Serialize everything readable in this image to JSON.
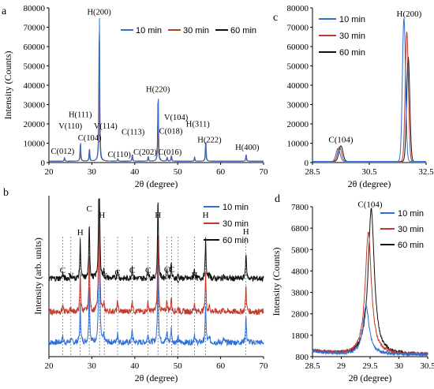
{
  "chart_data": [
    {
      "panel": "a",
      "type": "line",
      "xlabel": "2θ (degree)",
      "ylabel": "Intensity (Counts)",
      "xlim": [
        20,
        70
      ],
      "ylim": [
        0,
        80000
      ],
      "xticks": [
        20,
        30,
        40,
        50,
        60,
        70
      ],
      "yticks": [
        0,
        10000,
        20000,
        30000,
        40000,
        50000,
        60000,
        70000,
        80000
      ],
      "legend_position": "top-right",
      "series": [
        {
          "name": "10 min",
          "color": "#2f6fd6"
        },
        {
          "name": "30 min",
          "color": "#c0392b"
        },
        {
          "name": "60 min",
          "color": "#111111"
        }
      ],
      "peaks": [
        {
          "x": 23.6,
          "y": 1800
        },
        {
          "x": 27.3,
          "y": 9500
        },
        {
          "x": 29.4,
          "y": 6500
        },
        {
          "x": 31.7,
          "y": 74000
        },
        {
          "x": 36.0,
          "y": 1200
        },
        {
          "x": 39.4,
          "y": 3500
        },
        {
          "x": 43.1,
          "y": 2500
        },
        {
          "x": 45.4,
          "y": 34000
        },
        {
          "x": 47.5,
          "y": 2000
        },
        {
          "x": 48.5,
          "y": 3000
        },
        {
          "x": 53.9,
          "y": 2000
        },
        {
          "x": 56.5,
          "y": 10500
        },
        {
          "x": 65.9,
          "y": 3500
        },
        {
          "x": 75.3,
          "y": 800
        }
      ],
      "annotations": [
        {
          "text": "H(200)",
          "x": 31.7,
          "y": 76500
        },
        {
          "text": "H(111)",
          "x": 27.3,
          "y": 23500
        },
        {
          "text": "V(110)",
          "x": 25.0,
          "y": 17500
        },
        {
          "text": "C(104)",
          "x": 29.5,
          "y": 11500
        },
        {
          "text": "C(012)",
          "x": 23.2,
          "y": 4500
        },
        {
          "text": "V(114)",
          "x": 33.2,
          "y": 17500
        },
        {
          "text": "C(110)",
          "x": 36.4,
          "y": 2800
        },
        {
          "text": "C(113)",
          "x": 39.6,
          "y": 14500
        },
        {
          "text": "C(202)",
          "x": 42.4,
          "y": 4000
        },
        {
          "text": "H(220)",
          "x": 45.4,
          "y": 36500
        },
        {
          "text": "V(104)",
          "x": 49.6,
          "y": 22000
        },
        {
          "text": "C(018)",
          "x": 48.4,
          "y": 15000
        },
        {
          "text": "C(016)",
          "x": 48.2,
          "y": 4000
        },
        {
          "text": "H(311)",
          "x": 54.7,
          "y": 18500
        },
        {
          "text": "H(222)",
          "x": 57.4,
          "y": 10500
        },
        {
          "text": "H(400)",
          "x": 66.2,
          "y": 6500
        }
      ]
    },
    {
      "panel": "b",
      "type": "line",
      "xlabel": "2θ (degree)",
      "ylabel": "Intensity (arb. units)",
      "xlim": [
        20,
        70
      ],
      "xticks": [
        20,
        30,
        40,
        50,
        60,
        70
      ],
      "legend_position": "top-right",
      "series": [
        {
          "name": "10 min",
          "color": "#2f6fd6"
        },
        {
          "name": "30 min",
          "color": "#c0392b"
        },
        {
          "name": "60 min",
          "color": "#111111"
        }
      ],
      "peaks": [
        {
          "x": 23.2,
          "y": 0.5
        },
        {
          "x": 25.1,
          "y": 0.35
        },
        {
          "x": 27.3,
          "y": 3.2
        },
        {
          "x": 29.4,
          "y": 4.8
        },
        {
          "x": 31.7,
          "y": 14
        },
        {
          "x": 32.8,
          "y": 0.6
        },
        {
          "x": 36.0,
          "y": 0.9
        },
        {
          "x": 39.4,
          "y": 1.1
        },
        {
          "x": 43.1,
          "y": 0.9
        },
        {
          "x": 45.4,
          "y": 7
        },
        {
          "x": 47.5,
          "y": 1.0
        },
        {
          "x": 48.5,
          "y": 1.2
        },
        {
          "x": 50.1,
          "y": 0.4
        },
        {
          "x": 53.9,
          "y": 0.8
        },
        {
          "x": 56.5,
          "y": 3.2
        },
        {
          "x": 57.4,
          "y": 0.5
        },
        {
          "x": 60.7,
          "y": 0.3
        },
        {
          "x": 65.9,
          "y": 2.2
        }
      ],
      "markers": [
        {
          "text": "C",
          "x": 23.2
        },
        {
          "text": "V",
          "x": 25.1
        },
        {
          "text": "H",
          "x": 27.3
        },
        {
          "text": "C",
          "x": 29.4
        },
        {
          "text": "H",
          "x": 31.8
        },
        {
          "text": "V",
          "x": 32.9
        },
        {
          "text": "C",
          "x": 36.0
        },
        {
          "text": "C",
          "x": 39.4
        },
        {
          "text": "C",
          "x": 43.1
        },
        {
          "text": "H",
          "x": 45.4
        },
        {
          "text": "C",
          "x": 47.5
        },
        {
          "text": "C",
          "x": 48.6
        },
        {
          "text": "V",
          "x": 50.1
        },
        {
          "text": "H",
          "x": 53.9
        },
        {
          "text": "H",
          "x": 56.5
        },
        {
          "text": "H",
          "x": 65.9
        }
      ]
    },
    {
      "panel": "c",
      "type": "line",
      "xlabel": "2θ (degree)",
      "ylabel": "",
      "xlim": [
        28.5,
        32.5
      ],
      "ylim": [
        0,
        80000
      ],
      "xticks": [
        28.5,
        30.5,
        32.5
      ],
      "yticks": [
        0,
        10000,
        20000,
        30000,
        40000,
        50000,
        60000,
        70000,
        80000
      ],
      "legend_position": "top-left",
      "series": [
        {
          "name": "10 min",
          "color": "#2f6fd6",
          "peaks": [
            {
              "x": 29.4,
              "y": 6700
            },
            {
              "x": 31.72,
              "y": 74000
            }
          ]
        },
        {
          "name": "30 min",
          "color": "#c0392b",
          "peaks": [
            {
              "x": 29.45,
              "y": 7500
            },
            {
              "x": 31.82,
              "y": 67000
            }
          ]
        },
        {
          "name": "60 min",
          "color": "#111111",
          "peaks": [
            {
              "x": 29.5,
              "y": 8000
            },
            {
              "x": 31.87,
              "y": 54000
            }
          ]
        }
      ],
      "annotations": [
        {
          "text": "H(200)",
          "x": 31.9,
          "y": 75500
        },
        {
          "text": "C(104)",
          "x": 29.5,
          "y": 10500
        }
      ]
    },
    {
      "panel": "d",
      "type": "line",
      "xlabel": "2θ (degree)",
      "ylabel": "Intensity (Counts)",
      "xlim": [
        28.5,
        30.5
      ],
      "ylim": [
        800,
        7800
      ],
      "xticks": [
        28.5,
        29,
        29.5,
        30,
        30.5
      ],
      "yticks": [
        800,
        1800,
        2800,
        3800,
        4800,
        5800,
        6800,
        7800
      ],
      "legend_position": "top-right",
      "series": [
        {
          "name": "10 min",
          "color": "#2f6fd6",
          "peak_x": 29.43,
          "peak_y": 3250
        },
        {
          "name": "30 min",
          "color": "#c0392b",
          "peak_x": 29.47,
          "peak_y": 6700
        },
        {
          "name": "60 min",
          "color": "#111111",
          "peak_x": 29.52,
          "peak_y": 7800
        }
      ],
      "annotations": [
        {
          "text": "C(104)",
          "x": 29.5,
          "y": 7850
        }
      ]
    }
  ],
  "panel_labels": [
    "a",
    "b",
    "c",
    "d"
  ]
}
